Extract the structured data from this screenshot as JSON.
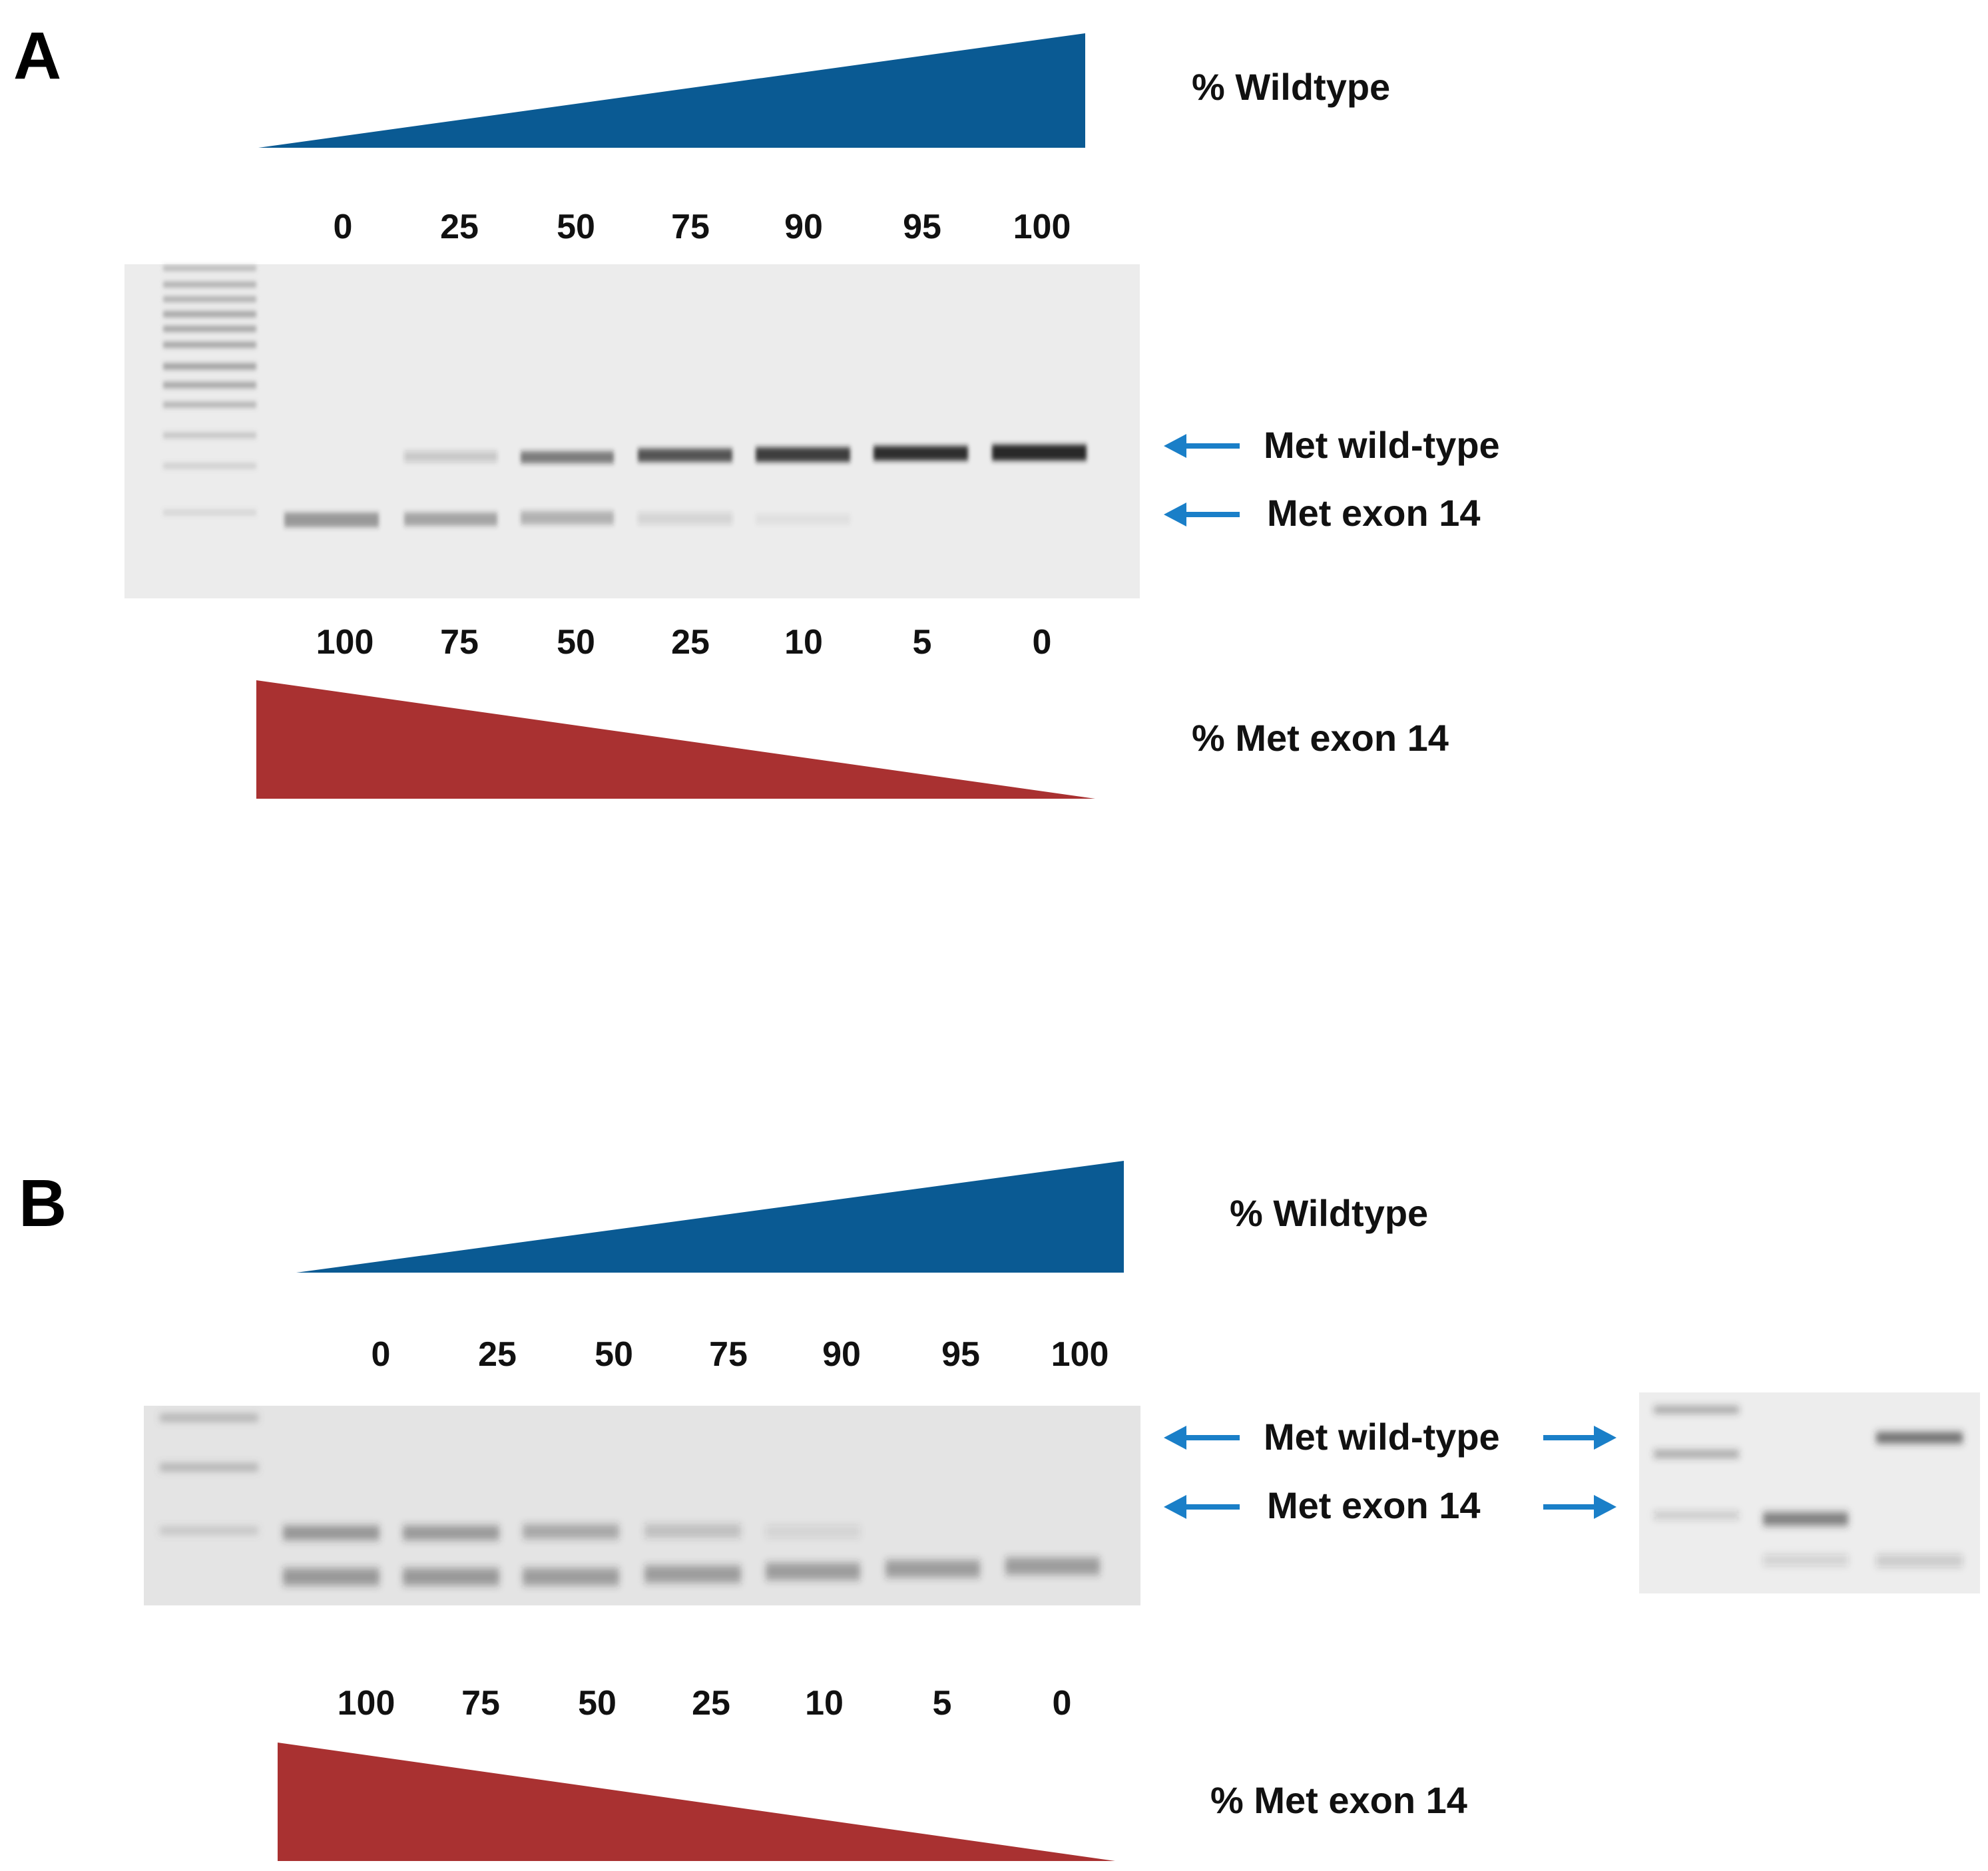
{
  "panels": [
    {
      "letter": "A",
      "wildtype_label": "% Wildtype",
      "met_label": "% Met exon 14",
      "wildtype_percent": [
        "0",
        "25",
        "50",
        "75",
        "90",
        "95",
        "100"
      ],
      "met_percent": [
        "100",
        "75",
        "50",
        "25",
        "10",
        "5",
        "0"
      ],
      "band_labels": [
        "Met wild-type",
        "Met exon 14"
      ]
    },
    {
      "letter": "B",
      "wildtype_label": "% Wildtype",
      "met_label": "% Met exon 14",
      "wildtype_percent": [
        "0",
        "25",
        "50",
        "75",
        "90",
        "95",
        "100"
      ],
      "met_percent": [
        "100",
        "75",
        "50",
        "25",
        "10",
        "5",
        "0"
      ],
      "band_labels": [
        "Met wild-type",
        "Met exon 14"
      ]
    }
  ],
  "colors": {
    "wildtype_wedge": "#0a5a93",
    "met_wedge": "#a93131",
    "arrow": "#1a7fc8",
    "gel_background": "#e9e9e9",
    "band": "#202020"
  }
}
